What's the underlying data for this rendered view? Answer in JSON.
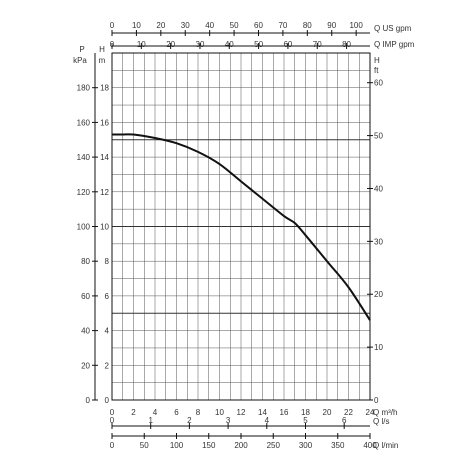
{
  "chart_data": {
    "type": "line",
    "title": "",
    "x_axes": {
      "q_m3h": {
        "unit": "Q m³/h",
        "range": [
          0,
          24
        ],
        "ticks": [
          0,
          2,
          4,
          6,
          8,
          10,
          12,
          14,
          16,
          18,
          20,
          22,
          24
        ]
      },
      "q_ls": {
        "unit": "Q l/s",
        "range": [
          0,
          6.667
        ],
        "ticks": [
          0,
          1,
          2,
          3,
          4,
          5,
          6
        ]
      },
      "q_lmin": {
        "unit": "Q l/min",
        "range": [
          0,
          400
        ],
        "ticks": [
          0,
          50,
          100,
          150,
          200,
          250,
          300,
          350,
          400
        ]
      },
      "q_usgpm": {
        "unit": "Q US gpm",
        "range": [
          0,
          105.67
        ],
        "ticks": [
          0,
          10,
          20,
          30,
          40,
          50,
          60,
          70,
          80,
          90,
          100
        ]
      },
      "q_impgpm": {
        "unit": "Q IMP gpm",
        "range": [
          0,
          87.99
        ],
        "ticks": [
          0,
          10,
          20,
          30,
          40,
          50,
          60,
          70,
          80
        ]
      }
    },
    "y_axes": {
      "p_kpa": {
        "unit_top": "P",
        "unit_bottom": "kPa",
        "range": [
          0,
          200
        ],
        "ticks": [
          0,
          20,
          40,
          60,
          80,
          100,
          120,
          140,
          160,
          180
        ]
      },
      "h_m": {
        "unit_top": "H",
        "unit_bottom": "m",
        "range": [
          0,
          20
        ],
        "ticks": [
          0,
          2,
          4,
          6,
          8,
          10,
          12,
          14,
          16,
          18
        ]
      },
      "h_ft": {
        "unit_top": "H",
        "unit_bottom": "ft",
        "range": [
          0,
          65.62
        ],
        "ticks": [
          0,
          10,
          20,
          30,
          40,
          50,
          60
        ]
      }
    },
    "grid": true,
    "series": [
      {
        "x_unit": "Q m³/h",
        "y_unit": "H m",
        "x": [
          0,
          1,
          2,
          4,
          6,
          8,
          10,
          12,
          14,
          16,
          17,
          18,
          20,
          22,
          24
        ],
        "y": [
          15.3,
          15.3,
          15.3,
          15.1,
          14.8,
          14.3,
          13.6,
          12.6,
          11.6,
          10.6,
          10.2,
          9.5,
          8.0,
          6.5,
          4.6
        ]
      }
    ]
  }
}
